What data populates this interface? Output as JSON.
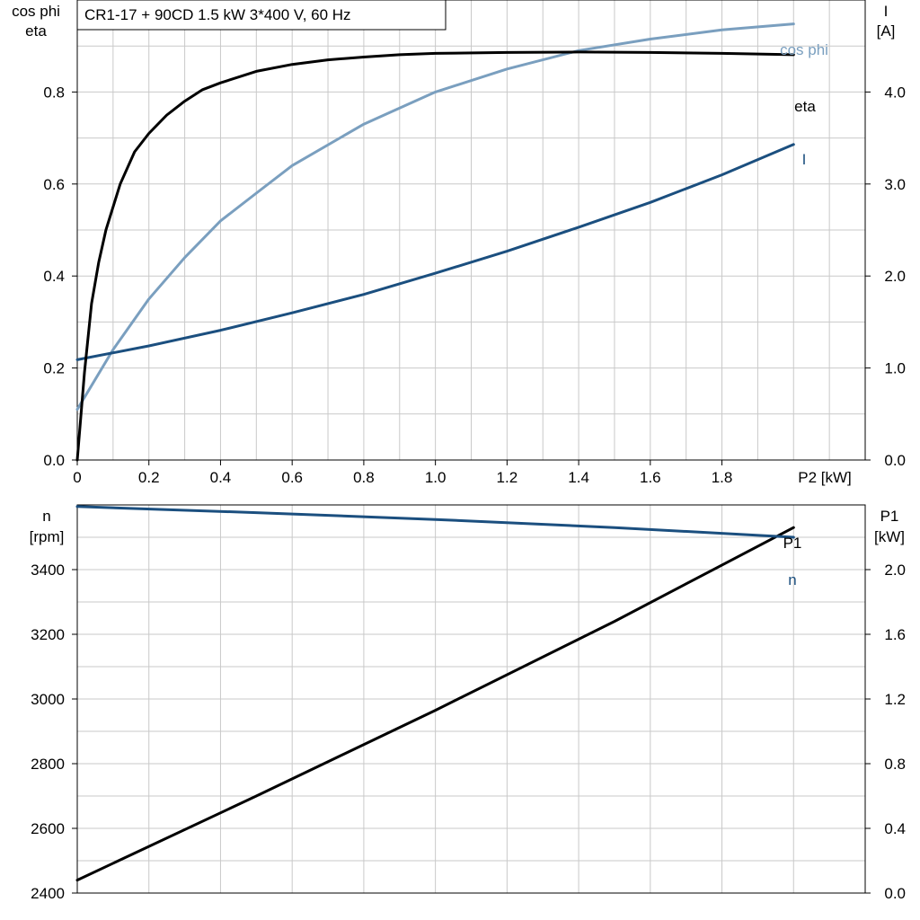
{
  "colors": {
    "eta": "#000000",
    "cos_phi": "#7a9fbf",
    "I": "#1b4f7f",
    "n": "#1b4f7f",
    "P1": "#000000",
    "grid": "#c9c9c9"
  },
  "chart_data": [
    {
      "type": "line",
      "title": "CR1-17 + 90CD   1.5 kW   3*400 V, 60 Hz",
      "xlabel": "P2 [kW]",
      "ylabel_left_line1": "cos phi",
      "ylabel_left_line2": "eta",
      "ylabel_right_line1": "I",
      "ylabel_right_line2": "[A]",
      "xlim": [
        0,
        2.2
      ],
      "ylim_left": [
        0,
        1.0
      ],
      "ylim_right": [
        0,
        5.0
      ],
      "x_tick_labels": [
        "0",
        "0.2",
        "0.4",
        "0.6",
        "0.8",
        "1.0",
        "1.2",
        "1.4",
        "1.6",
        "1.8"
      ],
      "y_left_tick_labels": [
        "0.0",
        "0.2",
        "0.4",
        "0.6",
        "0.8"
      ],
      "y_right_tick_labels": [
        "0.0",
        "1.0",
        "2.0",
        "3.0",
        "4.0"
      ],
      "grid": true,
      "series": [
        {
          "name": "eta",
          "axis": "left",
          "x": [
            0,
            0.02,
            0.04,
            0.06,
            0.08,
            0.12,
            0.16,
            0.2,
            0.25,
            0.3,
            0.35,
            0.4,
            0.5,
            0.6,
            0.7,
            0.8,
            0.9,
            1.0,
            1.2,
            1.4,
            1.6,
            1.8,
            2.0
          ],
          "y": [
            0,
            0.19,
            0.34,
            0.43,
            0.5,
            0.6,
            0.67,
            0.71,
            0.75,
            0.78,
            0.805,
            0.82,
            0.845,
            0.86,
            0.87,
            0.876,
            0.881,
            0.884,
            0.886,
            0.887,
            0.886,
            0.884,
            0.881
          ]
        },
        {
          "name": "cos phi",
          "axis": "left",
          "x": [
            0,
            0.1,
            0.2,
            0.3,
            0.4,
            0.5,
            0.6,
            0.8,
            1.0,
            1.2,
            1.4,
            1.6,
            1.8,
            2.0
          ],
          "y": [
            0.11,
            0.24,
            0.35,
            0.44,
            0.52,
            0.58,
            0.64,
            0.73,
            0.8,
            0.85,
            0.89,
            0.915,
            0.935,
            0.948
          ]
        },
        {
          "name": "I",
          "axis": "right",
          "x": [
            0,
            0.2,
            0.4,
            0.6,
            0.8,
            1.0,
            1.2,
            1.4,
            1.6,
            1.8,
            2.0
          ],
          "y": [
            1.09,
            1.24,
            1.41,
            1.6,
            1.8,
            2.03,
            2.27,
            2.53,
            2.8,
            3.1,
            3.43
          ]
        }
      ]
    },
    {
      "type": "line",
      "xlabel": "",
      "ylabel_left_line1": "n",
      "ylabel_left_line2": "[rpm]",
      "ylabel_right_line1": "P1",
      "ylabel_right_line2": "[kW]",
      "xlim": [
        0,
        2.2
      ],
      "ylim_left": [
        2400,
        3600
      ],
      "ylim_right": [
        0,
        2.4
      ],
      "y_left_tick_labels": [
        "2400",
        "2600",
        "2800",
        "3000",
        "3200",
        "3400"
      ],
      "y_right_tick_labels": [
        "0.0",
        "0.4",
        "0.8",
        "1.2",
        "1.6",
        "2.0"
      ],
      "grid": true,
      "series": [
        {
          "name": "n",
          "axis": "left",
          "x": [
            0,
            0.5,
            1.0,
            1.5,
            2.0
          ],
          "y": [
            3595,
            3576,
            3555,
            3530,
            3500
          ]
        },
        {
          "name": "P1",
          "axis": "right",
          "x": [
            0,
            0.5,
            1.0,
            1.5,
            2.0
          ],
          "y": [
            0.08,
            0.6,
            1.13,
            1.68,
            2.26
          ]
        }
      ]
    }
  ]
}
